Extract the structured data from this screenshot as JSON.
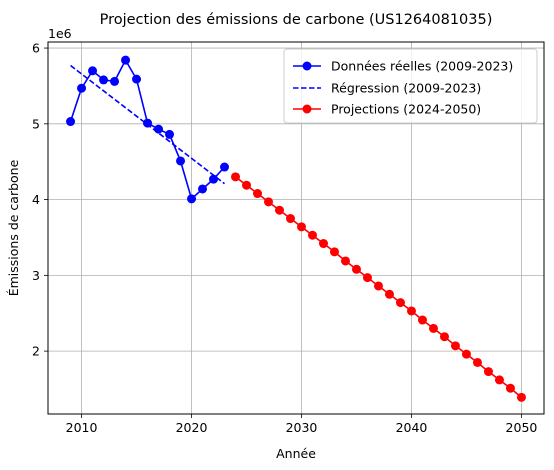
{
  "chart_data": {
    "type": "line",
    "title": "Projection des émissions de carbone (US1264081035)",
    "xlabel": "Année",
    "ylabel": "Émissions de carbone",
    "y_multiplier_label": "1e6",
    "xlim": [
      2006.95,
      2052.05
    ],
    "ylim": [
      1.17,
      6.08
    ],
    "x_ticks": [
      2010,
      2020,
      2030,
      2040,
      2050
    ],
    "y_ticks": [
      2,
      3,
      4,
      5,
      6
    ],
    "y_tick_labels": [
      "2",
      "3",
      "4",
      "5",
      "6"
    ],
    "grid": true,
    "legend_position": "upper right",
    "series": [
      {
        "name": "Données réelles (2009-2023)",
        "style": "solid-marker",
        "color": "#0000ff",
        "x": [
          2009,
          2010,
          2011,
          2012,
          2013,
          2014,
          2015,
          2016,
          2017,
          2018,
          2019,
          2020,
          2021,
          2022,
          2023
        ],
        "y": [
          5.03,
          5.47,
          5.7,
          5.58,
          5.56,
          5.84,
          5.59,
          5.01,
          4.93,
          4.86,
          4.51,
          4.01,
          4.14,
          4.27,
          4.43
        ]
      },
      {
        "name": "Régression (2009-2023)",
        "style": "dashed",
        "color": "#0000ff",
        "x": [
          2009,
          2023
        ],
        "y": [
          5.77,
          4.21
        ]
      },
      {
        "name": "Projections (2024-2050)",
        "style": "solid-marker",
        "color": "#ff0000",
        "x": [
          2024,
          2025,
          2026,
          2027,
          2028,
          2029,
          2030,
          2031,
          2032,
          2033,
          2034,
          2035,
          2036,
          2037,
          2038,
          2039,
          2040,
          2041,
          2042,
          2043,
          2044,
          2045,
          2046,
          2047,
          2048,
          2049,
          2050
        ],
        "y": [
          4.3,
          4.19,
          4.08,
          3.97,
          3.86,
          3.75,
          3.64,
          3.53,
          3.42,
          3.31,
          3.19,
          3.08,
          2.97,
          2.86,
          2.75,
          2.64,
          2.53,
          2.41,
          2.3,
          2.19,
          2.07,
          1.96,
          1.85,
          1.73,
          1.62,
          1.51,
          1.39
        ]
      }
    ]
  }
}
